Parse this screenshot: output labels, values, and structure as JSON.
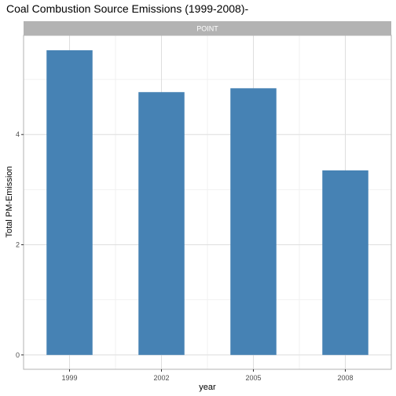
{
  "chart_data": {
    "type": "bar",
    "title": "Coal Combustion Source Emissions (1999-2008)-",
    "facet": "POINT",
    "xlabel": "year",
    "ylabel": "Total PM-Emission",
    "categories": [
      "1999",
      "2002",
      "2005",
      "2008"
    ],
    "values": [
      5.53,
      4.77,
      4.84,
      3.35
    ],
    "ylim": [
      -0.26,
      5.8
    ],
    "yticks": [
      0,
      2,
      4
    ],
    "grid": true,
    "colors": {
      "bar": "#4682b4",
      "strip": "#b3b3b3",
      "grid": "#dedede",
      "panel_border": "#b3b3b3"
    }
  }
}
